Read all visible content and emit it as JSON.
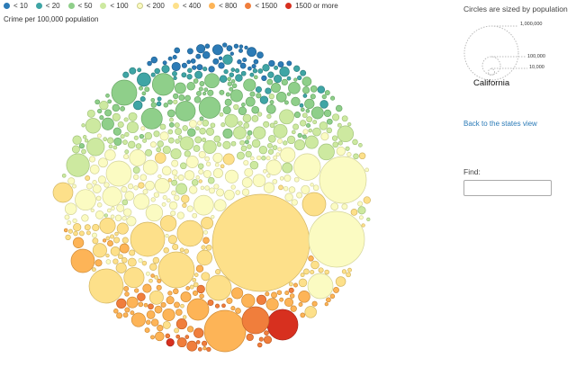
{
  "legend": {
    "items": [
      {
        "label": "< 10",
        "color": "#2c7bb6"
      },
      {
        "label": "< 20",
        "color": "#3fa5a5"
      },
      {
        "label": "< 50",
        "color": "#8fcf8a"
      },
      {
        "label": "< 100",
        "color": "#cde9a0"
      },
      {
        "label": "< 200",
        "color": "#fbfbc2"
      },
      {
        "label": "< 400",
        "color": "#fde08a"
      },
      {
        "label": "< 800",
        "color": "#fdb457"
      },
      {
        "label": "< 1500",
        "color": "#f07e3c"
      },
      {
        "label": "1500 or more",
        "color": "#d7301f"
      }
    ]
  },
  "subtitle": "Crime per 100,000 population",
  "size_legend": {
    "title": "Circles are sized by population",
    "levels": [
      {
        "label": "1,000,000",
        "population": 1000000
      },
      {
        "label": "100,000",
        "population": 100000
      },
      {
        "label": "10,000",
        "population": 10000
      }
    ],
    "state_label": "California"
  },
  "back_link": "Back to the states view",
  "find": {
    "label": "Find:",
    "value": "",
    "placeholder": ""
  },
  "chart_data": {
    "type": "bubble-pack",
    "state": "California",
    "size_by": "population",
    "color_by": "crime per 100,000 population",
    "bins": [
      "< 10",
      "< 20",
      "< 50",
      "< 100",
      "< 200",
      "< 400",
      "< 800",
      "< 1500",
      "1500 or more"
    ]
  }
}
